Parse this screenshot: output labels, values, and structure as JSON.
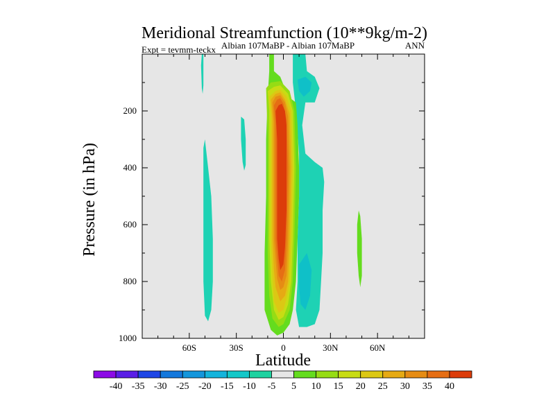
{
  "chart_data": {
    "type": "heatmap",
    "title": "Meridional Streamfunction (10**9kg/m-2)",
    "subtitle_left": "Expt = tevmm-teckx",
    "subtitle_center": "Albian   107MaBP - Albian   107MaBP",
    "subtitle_right": "ANN",
    "xlabel": "Latitude",
    "ylabel": "Pressure (in hPa)",
    "xlim": [
      -90,
      90
    ],
    "ylim": [
      0,
      1000
    ],
    "x_ticks": [
      -60,
      -30,
      0,
      30,
      60
    ],
    "x_tick_labels": [
      "60S",
      "30S",
      "0",
      "30N",
      "60N"
    ],
    "y_ticks": [
      200,
      400,
      600,
      800,
      1000
    ],
    "y_tick_labels": [
      "200",
      "400",
      "600",
      "800",
      "1000"
    ],
    "background_color": "#e6e6e6",
    "contour_regions": [
      {
        "name": "cyan-patch-sh-upper",
        "level": "-5",
        "color": "#1ed2b4",
        "points": [
          [
            -51,
            0
          ],
          [
            -51,
            110
          ],
          [
            -51.5,
            140
          ],
          [
            -52,
            120
          ],
          [
            -52.5,
            40
          ],
          [
            -52,
            0
          ]
        ]
      },
      {
        "name": "cyan-patch-sh-lower",
        "level": "-5",
        "color": "#1ed2b4",
        "points": [
          [
            -51,
            330
          ],
          [
            -50,
            300
          ],
          [
            -48,
            400
          ],
          [
            -46,
            500
          ],
          [
            -45,
            650
          ],
          [
            -45,
            800
          ],
          [
            -46,
            900
          ],
          [
            -48,
            940
          ],
          [
            -50,
            920
          ],
          [
            -51,
            800
          ],
          [
            -51,
            600
          ]
        ]
      },
      {
        "name": "cyan-patch-sh-mid",
        "level": "-5",
        "color": "#1ed2b4",
        "points": [
          [
            -27,
            220
          ],
          [
            -25,
            230
          ],
          [
            -24,
            300
          ],
          [
            -24,
            390
          ],
          [
            -25,
            410
          ],
          [
            -26,
            380
          ],
          [
            -27,
            300
          ]
        ]
      },
      {
        "name": "cyan-patch-tropics",
        "level": "-5",
        "color": "#1ed2b4",
        "points": [
          [
            6,
            0
          ],
          [
            14,
            0
          ],
          [
            15,
            60
          ],
          [
            20,
            80
          ],
          [
            23,
            120
          ],
          [
            20,
            170
          ],
          [
            14,
            170
          ],
          [
            12,
            250
          ],
          [
            14,
            350
          ],
          [
            20,
            380
          ],
          [
            25,
            400
          ],
          [
            26,
            450
          ],
          [
            25,
            550
          ],
          [
            25,
            700
          ],
          [
            24,
            800
          ],
          [
            23,
            900
          ],
          [
            20,
            950
          ],
          [
            15,
            960
          ],
          [
            10,
            960
          ],
          [
            8,
            900
          ],
          [
            9,
            800
          ],
          [
            9,
            650
          ],
          [
            10,
            500
          ],
          [
            10,
            350
          ],
          [
            8,
            200
          ],
          [
            6,
            100
          ]
        ]
      },
      {
        "name": "green-patch-nh",
        "level": "5",
        "color": "#64dc1e",
        "points": [
          [
            48,
            550
          ],
          [
            49,
            570
          ],
          [
            50,
            650
          ],
          [
            50,
            780
          ],
          [
            49,
            820
          ],
          [
            48,
            780
          ],
          [
            47,
            700
          ],
          [
            47,
            600
          ]
        ]
      },
      {
        "name": "blue-patch-upper",
        "level": "-10",
        "color": "#0fc0c8",
        "points": [
          [
            9,
            90
          ],
          [
            14,
            80
          ],
          [
            18,
            100
          ],
          [
            17,
            130
          ],
          [
            13,
            150
          ],
          [
            10,
            130
          ]
        ]
      },
      {
        "name": "blue-patch-lower",
        "level": "-10",
        "color": "#0fc0c8",
        "points": [
          [
            10,
            740
          ],
          [
            15,
            700
          ],
          [
            18,
            760
          ],
          [
            17,
            850
          ],
          [
            14,
            900
          ],
          [
            11,
            880
          ],
          [
            10,
            820
          ]
        ]
      },
      {
        "name": "band-level-5",
        "level": "5",
        "color": "#64dc1e",
        "points": [
          [
            -9,
            0
          ],
          [
            -6,
            0
          ],
          [
            -6,
            60
          ],
          [
            -2,
            80
          ],
          [
            3,
            150
          ],
          [
            8,
            170
          ],
          [
            9,
            250
          ],
          [
            10,
            400
          ],
          [
            10,
            500
          ],
          [
            9,
            650
          ],
          [
            8,
            800
          ],
          [
            6,
            900
          ],
          [
            4,
            950
          ],
          [
            0,
            980
          ],
          [
            -4,
            990
          ],
          [
            -8,
            970
          ],
          [
            -12,
            900
          ],
          [
            -12,
            700
          ],
          [
            -11,
            500
          ],
          [
            -11,
            300
          ],
          [
            -10,
            150
          ],
          [
            -9,
            60
          ]
        ]
      },
      {
        "name": "band-level-10",
        "level": "10",
        "color": "#96dc14",
        "points": [
          [
            -11,
            120
          ],
          [
            -8,
            100
          ],
          [
            -2,
            95
          ],
          [
            4,
            130
          ],
          [
            7,
            200
          ],
          [
            8,
            400
          ],
          [
            7,
            650
          ],
          [
            6,
            800
          ],
          [
            4,
            900
          ],
          [
            0,
            950
          ],
          [
            -3,
            960
          ],
          [
            -7,
            930
          ],
          [
            -9,
            850
          ],
          [
            -10,
            700
          ],
          [
            -10,
            500
          ],
          [
            -10,
            300
          ]
        ]
      },
      {
        "name": "band-level-15",
        "level": "15",
        "color": "#c8dc14",
        "points": [
          [
            -10,
            130
          ],
          [
            -6,
            115
          ],
          [
            -2,
            110
          ],
          [
            3,
            140
          ],
          [
            6,
            200
          ],
          [
            7,
            400
          ],
          [
            6,
            650
          ],
          [
            5,
            800
          ],
          [
            3,
            880
          ],
          [
            0,
            925
          ],
          [
            -3,
            935
          ],
          [
            -6,
            900
          ],
          [
            -8,
            800
          ],
          [
            -9,
            650
          ],
          [
            -9,
            400
          ],
          [
            -9,
            200
          ]
        ]
      },
      {
        "name": "band-level-20",
        "level": "20",
        "color": "#dcc814",
        "points": [
          [
            -9,
            150
          ],
          [
            -5,
            130
          ],
          [
            -2,
            125
          ],
          [
            2,
            150
          ],
          [
            5,
            200
          ],
          [
            6,
            400
          ],
          [
            5,
            650
          ],
          [
            4,
            800
          ],
          [
            2,
            860
          ],
          [
            0,
            900
          ],
          [
            -3,
            910
          ],
          [
            -6,
            870
          ],
          [
            -7,
            780
          ],
          [
            -8,
            650
          ],
          [
            -8,
            400
          ],
          [
            -8,
            220
          ]
        ]
      },
      {
        "name": "band-level-25",
        "level": "25",
        "color": "#e6aa14",
        "points": [
          [
            -8,
            160
          ],
          [
            -5,
            140
          ],
          [
            -2,
            135
          ],
          [
            1,
            160
          ],
          [
            4,
            210
          ],
          [
            5,
            400
          ],
          [
            4,
            650
          ],
          [
            3,
            800
          ],
          [
            1,
            850
          ],
          [
            -2,
            870
          ],
          [
            -5,
            820
          ],
          [
            -6,
            760
          ],
          [
            -7,
            650
          ],
          [
            -7,
            400
          ],
          [
            -7,
            230
          ]
        ]
      },
      {
        "name": "band-level-30",
        "level": "30",
        "color": "#e68c14",
        "points": [
          [
            -7,
            170
          ],
          [
            -5,
            150
          ],
          [
            -2,
            145
          ],
          [
            1,
            170
          ],
          [
            3,
            220
          ],
          [
            4,
            400
          ],
          [
            3,
            650
          ],
          [
            2,
            780
          ],
          [
            0,
            820
          ],
          [
            -2,
            830
          ],
          [
            -4,
            790
          ],
          [
            -5,
            720
          ],
          [
            -6,
            650
          ],
          [
            -6,
            400
          ],
          [
            -6,
            240
          ]
        ]
      },
      {
        "name": "band-level-35",
        "level": "35",
        "color": "#e66e14",
        "points": [
          [
            -6,
            180
          ],
          [
            -4,
            160
          ],
          [
            -2,
            155
          ],
          [
            0,
            175
          ],
          [
            2,
            230
          ],
          [
            3,
            400
          ],
          [
            2,
            650
          ],
          [
            1,
            760
          ],
          [
            -1,
            800
          ],
          [
            -3,
            780
          ],
          [
            -4,
            720
          ],
          [
            -5,
            650
          ],
          [
            -5,
            400
          ],
          [
            -5,
            250
          ]
        ]
      },
      {
        "name": "band-level-40",
        "level": "40",
        "color": "#dc3c0a",
        "points": [
          [
            -5,
            200
          ],
          [
            -3,
            180
          ],
          [
            -1,
            175
          ],
          [
            1,
            200
          ],
          [
            2,
            250
          ],
          [
            2,
            400
          ],
          [
            2,
            550
          ],
          [
            1,
            680
          ],
          [
            0,
            740
          ],
          [
            -2,
            760
          ],
          [
            -3,
            720
          ],
          [
            -4,
            650
          ],
          [
            -4,
            500
          ],
          [
            -4,
            300
          ]
        ]
      }
    ],
    "colorbar": {
      "labels": [
        "-40",
        "-35",
        "-30",
        "-25",
        "-20",
        "-15",
        "-10",
        "-5",
        "5",
        "10",
        "15",
        "20",
        "25",
        "30",
        "35",
        "40"
      ],
      "colors": [
        "#8c0ae6",
        "#5a1ee6",
        "#1e46e6",
        "#1478dc",
        "#1496dc",
        "#14b4dc",
        "#14c8c8",
        "#1ed2a0",
        "#e6e6e6",
        "#64dc1e",
        "#96dc14",
        "#c8dc14",
        "#dcc814",
        "#e6aa14",
        "#e68c14",
        "#e66e14",
        "#dc3c0a"
      ]
    }
  }
}
